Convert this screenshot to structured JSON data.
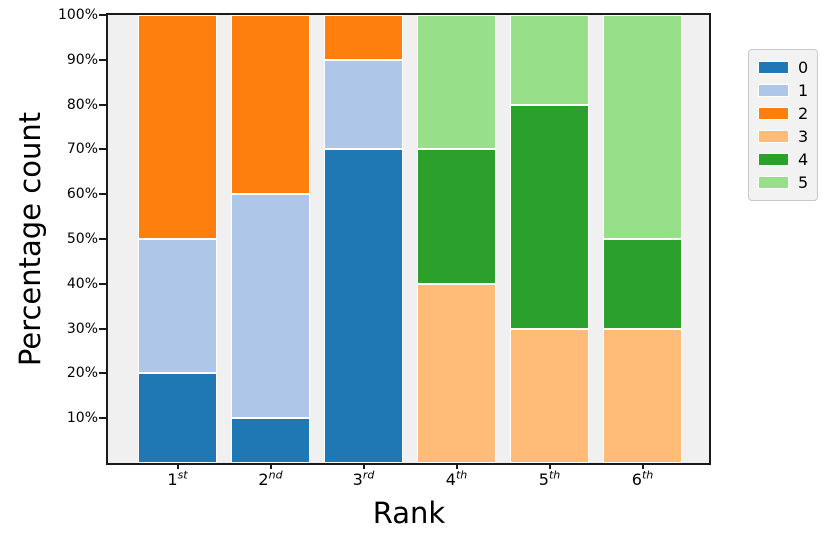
{
  "chart_data": {
    "type": "bar",
    "stacked": true,
    "orientation": "vertical",
    "title": "",
    "xlabel": "Rank",
    "ylabel": "Percentage count",
    "ylim": [
      0,
      100
    ],
    "grid": false,
    "legend_position": "right-outside",
    "plot_background": "#f0f0f0",
    "spine_color": "#1a1a1a",
    "bar_edge_color": "#ffffff",
    "categories": [
      {
        "base": "1",
        "sup": "st"
      },
      {
        "base": "2",
        "sup": "nd"
      },
      {
        "base": "3",
        "sup": "rd"
      },
      {
        "base": "4",
        "sup": "th"
      },
      {
        "base": "5",
        "sup": "th"
      },
      {
        "base": "6",
        "sup": "th"
      }
    ],
    "series": [
      {
        "name": "0",
        "color": "#1f77b4",
        "values": [
          20,
          10,
          70,
          0,
          0,
          0
        ]
      },
      {
        "name": "1",
        "color": "#aec7e8",
        "values": [
          30,
          50,
          20,
          0,
          0,
          0
        ]
      },
      {
        "name": "2",
        "color": "#ff7f0e",
        "values": [
          50,
          40,
          10,
          0,
          0,
          0
        ]
      },
      {
        "name": "3",
        "color": "#ffbb78",
        "values": [
          0,
          0,
          0,
          40,
          30,
          30
        ]
      },
      {
        "name": "4",
        "color": "#2ca02c",
        "values": [
          0,
          0,
          0,
          30,
          50,
          20
        ]
      },
      {
        "name": "5",
        "color": "#98df8a",
        "values": [
          0,
          0,
          0,
          30,
          20,
          50
        ]
      }
    ],
    "y_ticks": [
      {
        "label": "10%",
        "value": 10
      },
      {
        "label": "20%",
        "value": 20
      },
      {
        "label": "30%",
        "value": 30
      },
      {
        "label": "40%",
        "value": 40
      },
      {
        "label": "50%",
        "value": 50
      },
      {
        "label": "60%",
        "value": 60
      },
      {
        "label": "70%",
        "value": 70
      },
      {
        "label": "80%",
        "value": 80
      },
      {
        "label": "90%",
        "value": 90
      },
      {
        "label": "100%",
        "value": 100
      }
    ]
  }
}
